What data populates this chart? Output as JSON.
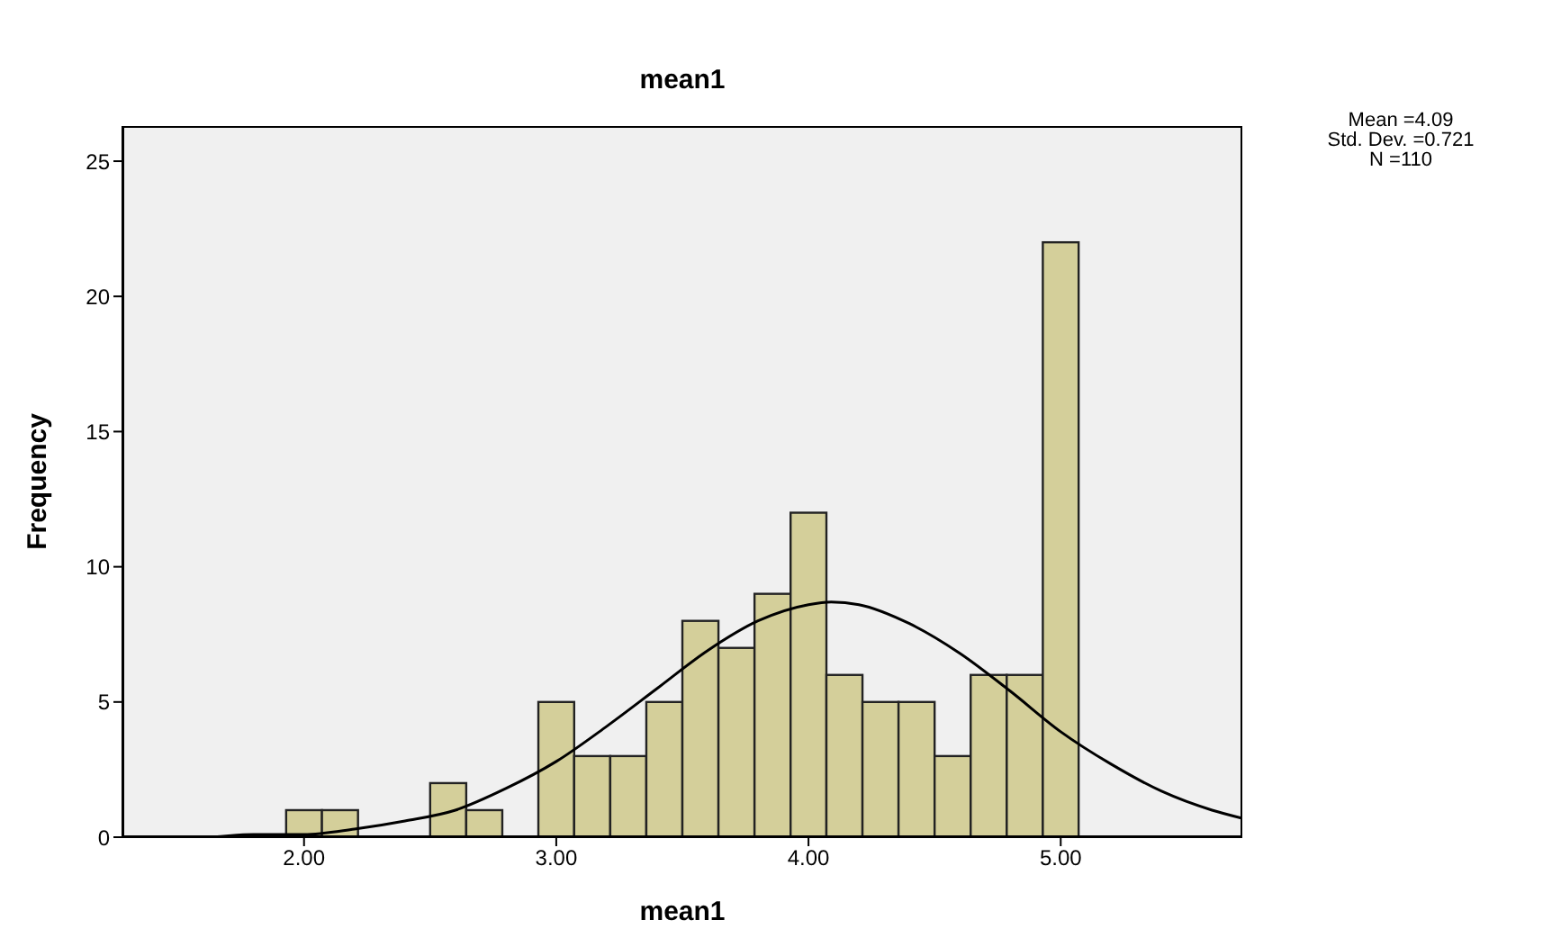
{
  "chart_data": {
    "type": "histogram",
    "title": "mean1",
    "xlabel": "mean1",
    "ylabel": "Frequency",
    "annotations": [
      "Mean =4.09",
      "Std. Dev. =0.721",
      "N =110"
    ],
    "bins": [
      1.929,
      2.071,
      2.214,
      2.357,
      2.5,
      2.643,
      2.786,
      2.929,
      3.071,
      3.214,
      3.357,
      3.5,
      3.643,
      3.786,
      3.929,
      4.071,
      4.214,
      4.357,
      4.5,
      4.643,
      4.786,
      4.929,
      5.071
    ],
    "series": [
      {
        "color": "#d4cf9a",
        "values": [
          1,
          1,
          0,
          0,
          2,
          1,
          0,
          5,
          3,
          3,
          5,
          8,
          7,
          9,
          12,
          6,
          5,
          5,
          3,
          6,
          6,
          22
        ]
      },
      {
        "type": "line",
        "color": "#000000",
        "x": [
          1.28,
          1.6,
          1.8,
          2.0,
          2.2,
          2.4,
          2.6,
          2.8,
          3.0,
          3.2,
          3.4,
          3.6,
          3.8,
          4.0,
          4.09,
          4.2,
          4.4,
          4.6,
          4.8,
          5.0,
          5.2,
          5.4,
          5.6,
          5.72
        ],
        "values": [
          0.0,
          0.0,
          0.1,
          0.1,
          0.3,
          0.6,
          1.0,
          1.8,
          2.8,
          4.1,
          5.5,
          6.9,
          8.0,
          8.6,
          8.7,
          8.6,
          7.9,
          6.8,
          5.4,
          3.9,
          2.7,
          1.7,
          1.0,
          0.7
        ]
      }
    ],
    "xlim": [
      1.28,
      5.72
    ],
    "xticks": [
      {
        "value": 2,
        "label": "2.00"
      },
      {
        "value": 3,
        "label": "3.00"
      },
      {
        "value": 4,
        "label": "4.00"
      },
      {
        "value": 5,
        "label": "5.00"
      }
    ],
    "ylim": [
      0,
      26.3
    ],
    "yticks": [
      0,
      5,
      10,
      15,
      20,
      25
    ],
    "grid": false,
    "marker": "none",
    "line_style": "solid"
  }
}
